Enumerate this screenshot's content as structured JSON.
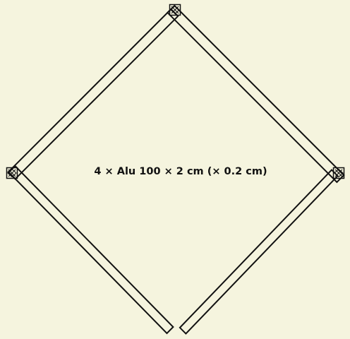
{
  "label": "4 × Alu 100 × 2 cm (× 0.2 cm)",
  "background_color": "#f5f4de",
  "line_color": "#111111",
  "parts": [
    {
      "name": "upper-left-bar",
      "kind": "bar"
    },
    {
      "name": "upper-right-bar",
      "kind": "bar"
    },
    {
      "name": "lower-left-bar",
      "kind": "bar"
    },
    {
      "name": "lower-right-bar",
      "kind": "bar"
    },
    {
      "name": "top-joint",
      "kind": "connector-icon"
    },
    {
      "name": "left-joint",
      "kind": "connector-icon"
    },
    {
      "name": "right-joint",
      "kind": "connector-icon"
    }
  ]
}
